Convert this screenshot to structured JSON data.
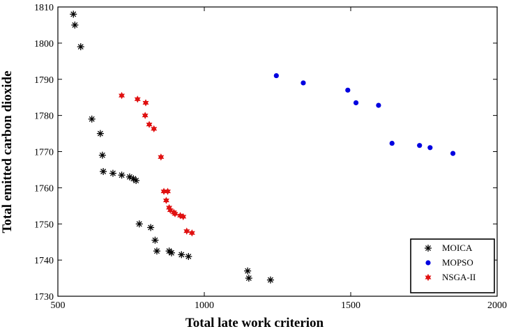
{
  "chart_data": {
    "type": "scatter",
    "xlabel": "Total late work criterion",
    "ylabel": "Total emitted carbon dioxide",
    "xlim": [
      500,
      2000
    ],
    "ylim": [
      1730,
      1810
    ],
    "xticks": [
      500,
      1000,
      1500,
      2000
    ],
    "yticks": [
      1730,
      1740,
      1750,
      1760,
      1770,
      1780,
      1790,
      1800,
      1810
    ],
    "grid": false,
    "legend_position": "bottom-right",
    "series": [
      {
        "name": "MOICA",
        "marker": "asterisk",
        "color": "#000000",
        "points": [
          [
            553,
            1808
          ],
          [
            558,
            1805
          ],
          [
            578,
            1799
          ],
          [
            616,
            1779
          ],
          [
            645,
            1775
          ],
          [
            652,
            1769
          ],
          [
            655,
            1764.5
          ],
          [
            688,
            1764
          ],
          [
            718,
            1763.5
          ],
          [
            745,
            1763
          ],
          [
            758,
            1762.5
          ],
          [
            767,
            1762
          ],
          [
            778,
            1750
          ],
          [
            817,
            1749
          ],
          [
            832,
            1745.5
          ],
          [
            838,
            1742.5
          ],
          [
            880,
            1742.5
          ],
          [
            888,
            1742
          ],
          [
            922,
            1741.5
          ],
          [
            946,
            1741
          ],
          [
            1148,
            1737
          ],
          [
            1152,
            1735
          ],
          [
            1226,
            1734.5
          ]
        ]
      },
      {
        "name": "MOPSO",
        "marker": "circle",
        "color": "#0000e0",
        "points": [
          [
            1246,
            1791
          ],
          [
            1338,
            1789
          ],
          [
            1490,
            1787
          ],
          [
            1518,
            1783.5
          ],
          [
            1595,
            1782.8
          ],
          [
            1641,
            1772.3
          ],
          [
            1735,
            1771.7
          ],
          [
            1771,
            1771.1
          ],
          [
            1849,
            1769.5
          ]
        ]
      },
      {
        "name": "NSGA-II",
        "marker": "star",
        "color": "#e01010",
        "points": [
          [
            718,
            1785.5
          ],
          [
            772,
            1784.5
          ],
          [
            800,
            1783.5
          ],
          [
            798,
            1780
          ],
          [
            812,
            1777.5
          ],
          [
            828,
            1776.3
          ],
          [
            852,
            1768.5
          ],
          [
            862,
            1759
          ],
          [
            875,
            1759
          ],
          [
            870,
            1756.5
          ],
          [
            880,
            1754.5
          ],
          [
            884,
            1753.8
          ],
          [
            896,
            1753.2
          ],
          [
            900,
            1752.8
          ],
          [
            918,
            1752.3
          ],
          [
            928,
            1752
          ],
          [
            940,
            1748
          ],
          [
            958,
            1747.5
          ]
        ]
      }
    ]
  }
}
